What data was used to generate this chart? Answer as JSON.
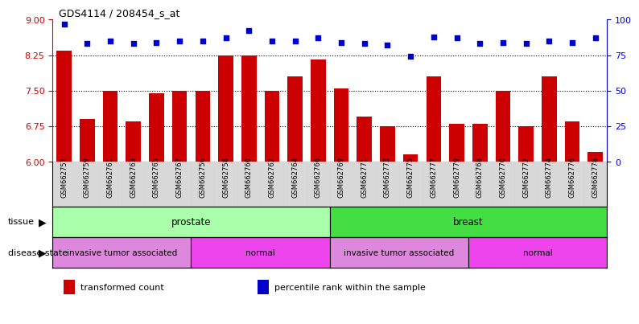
{
  "title": "GDS4114 / 208454_s_at",
  "samples": [
    "GSM662757",
    "GSM662759",
    "GSM662761",
    "GSM662763",
    "GSM662765",
    "GSM662767",
    "GSM662756",
    "GSM662758",
    "GSM662760",
    "GSM662762",
    "GSM662764",
    "GSM662766",
    "GSM662769",
    "GSM662771",
    "GSM662773",
    "GSM662775",
    "GSM662777",
    "GSM662779",
    "GSM662768",
    "GSM662770",
    "GSM662772",
    "GSM662774",
    "GSM662776",
    "GSM662778"
  ],
  "bar_values": [
    8.35,
    6.9,
    7.5,
    6.85,
    7.45,
    7.5,
    7.5,
    8.25,
    8.25,
    7.5,
    7.8,
    8.15,
    7.55,
    6.95,
    6.75,
    6.15,
    7.8,
    6.8,
    6.8,
    7.5,
    6.75,
    7.8,
    6.85,
    6.2
  ],
  "dot_values": [
    97,
    83,
    85,
    83,
    84,
    85,
    85,
    87,
    92,
    85,
    85,
    87,
    84,
    83,
    82,
    74,
    88,
    87,
    83,
    84,
    83,
    85,
    84,
    87
  ],
  "bar_color": "#CC0000",
  "dot_color": "#0000CC",
  "ylim_left": [
    6,
    9
  ],
  "ylim_right": [
    0,
    100
  ],
  "yticks_left": [
    6,
    6.75,
    7.5,
    8.25,
    9
  ],
  "yticks_right": [
    0,
    25,
    50,
    75,
    100
  ],
  "tissue_groups": [
    {
      "label": "prostate",
      "start": 0,
      "end": 12,
      "color": "#AAFFAA"
    },
    {
      "label": "breast",
      "start": 12,
      "end": 24,
      "color": "#44DD44"
    }
  ],
  "disease_groups": [
    {
      "label": "invasive tumor associated",
      "start": 0,
      "end": 6,
      "color": "#DD88DD"
    },
    {
      "label": "normal",
      "start": 6,
      "end": 12,
      "color": "#EE44EE"
    },
    {
      "label": "invasive tumor associated",
      "start": 12,
      "end": 18,
      "color": "#DD88DD"
    },
    {
      "label": "normal",
      "start": 18,
      "end": 24,
      "color": "#EE44EE"
    }
  ],
  "legend_items": [
    {
      "label": "transformed count",
      "color": "#CC0000"
    },
    {
      "label": "percentile rank within the sample",
      "color": "#0000CC"
    }
  ],
  "xtick_bg": "#D8D8D8",
  "bar_width": 0.65
}
